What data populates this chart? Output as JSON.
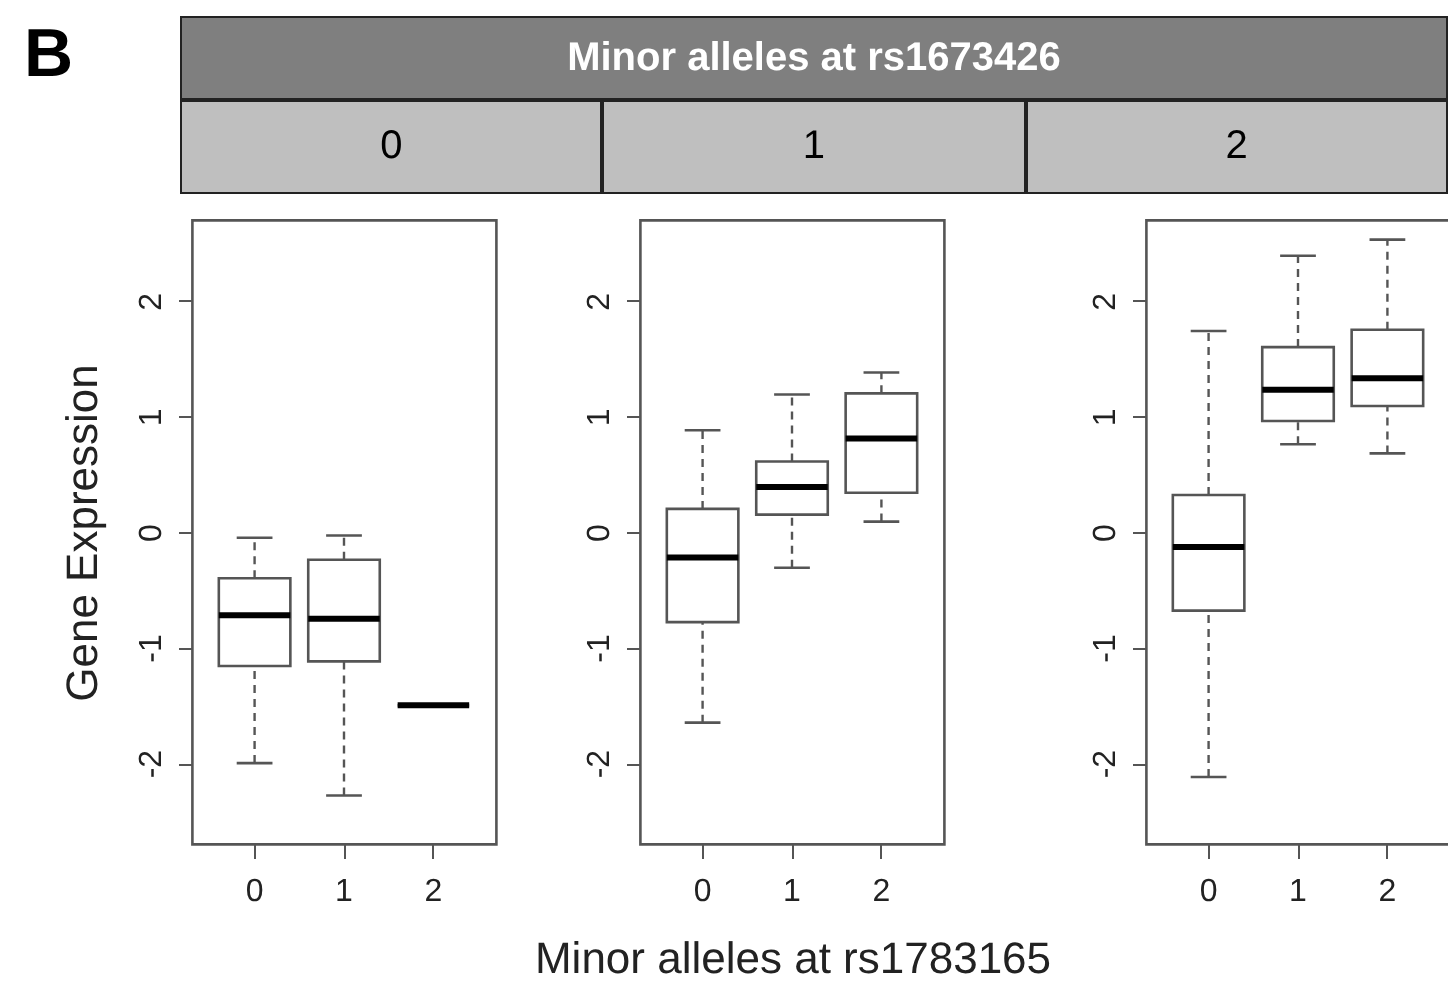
{
  "chart_data": [
    {
      "type": "box",
      "subtitle": "0",
      "annotations": [
        "B"
      ],
      "ylabel": "Gene Expression",
      "categories": [
        "0",
        "1",
        "2"
      ],
      "ylim": [
        -2.7,
        2.7
      ],
      "yticks": [
        -2,
        -1,
        0,
        1,
        2
      ],
      "boxes": [
        {
          "low": -2.0,
          "q1": -1.16,
          "median": -0.72,
          "q3": -0.4,
          "high": -0.05
        },
        {
          "low": -2.28,
          "q1": -1.12,
          "median": -0.75,
          "q3": -0.24,
          "high": -0.03
        },
        {
          "low": -1.5,
          "q1": -1.5,
          "median": -1.5,
          "q3": -1.5,
          "high": -1.5
        }
      ]
    },
    {
      "type": "box",
      "title": "Minor alleles  at rs1673426",
      "subtitle": "1",
      "xlabel": "Minor alleles at rs1783165",
      "categories": [
        "0",
        "1",
        "2"
      ],
      "ylim": [
        -2.7,
        2.7
      ],
      "yticks": [
        -2,
        -1,
        0,
        1,
        2
      ],
      "boxes": [
        {
          "low": -1.65,
          "q1": -0.78,
          "median": -0.22,
          "q3": 0.2,
          "high": 0.88
        },
        {
          "low": -0.31,
          "q1": 0.15,
          "median": 0.39,
          "q3": 0.61,
          "high": 1.19
        },
        {
          "low": 0.09,
          "q1": 0.34,
          "median": 0.81,
          "q3": 1.2,
          "high": 1.38
        }
      ]
    },
    {
      "type": "box",
      "subtitle": "2",
      "categories": [
        "0",
        "1",
        "2"
      ],
      "ylim": [
        -2.7,
        2.7
      ],
      "yticks": [
        -2,
        -1,
        0,
        1,
        2
      ],
      "boxes": [
        {
          "low": -2.12,
          "q1": -0.68,
          "median": -0.13,
          "q3": 0.32,
          "high": 1.74
        },
        {
          "low": 0.76,
          "q1": 0.96,
          "median": 1.23,
          "q3": 1.6,
          "high": 2.39
        },
        {
          "low": 0.68,
          "q1": 1.09,
          "median": 1.33,
          "q3": 1.75,
          "high": 2.53
        }
      ]
    }
  ]
}
